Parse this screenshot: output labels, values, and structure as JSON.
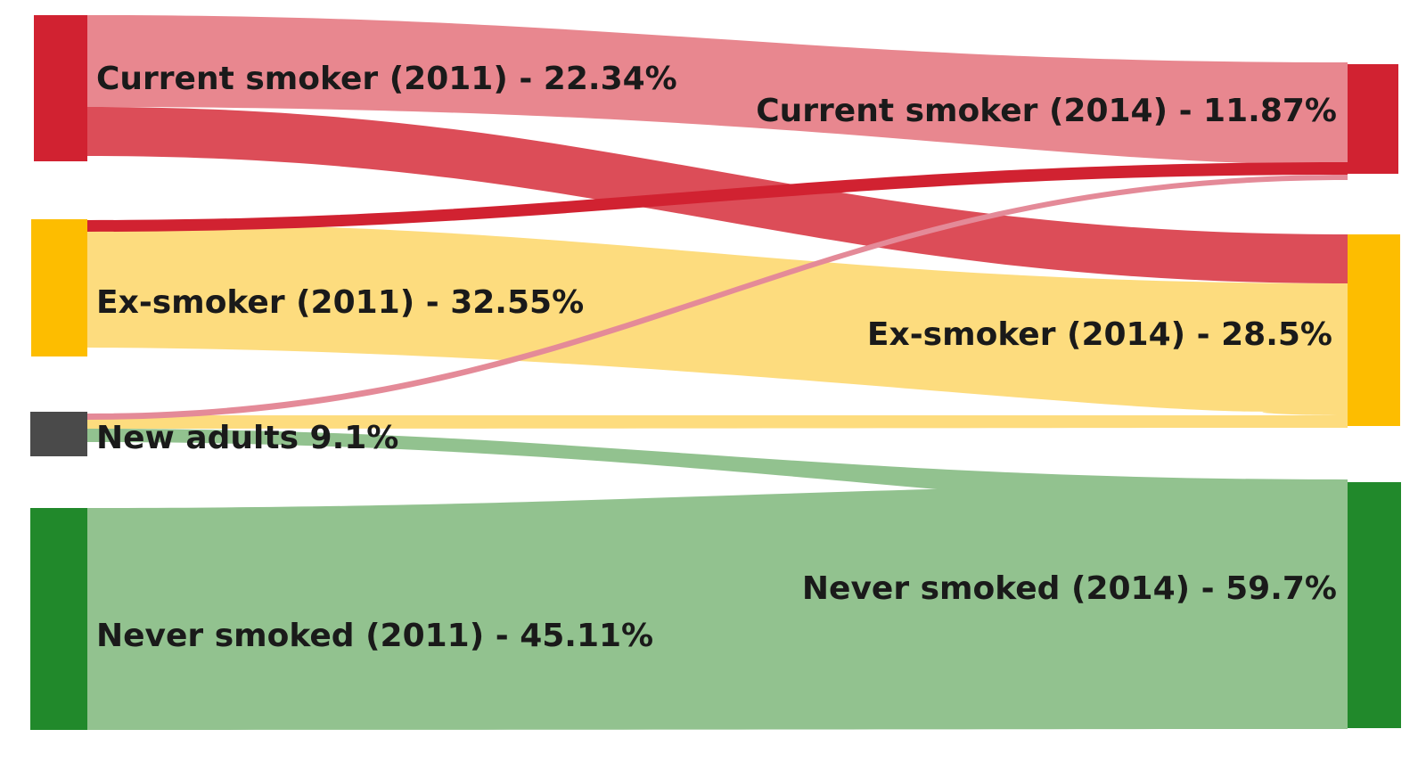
{
  "colors": {
    "current_node": "#d12231",
    "ex_node": "#fdbd00",
    "new_node": "#4a4a4a",
    "never_node": "#21892b",
    "flow_current_stay": "#e8878f",
    "flow_current_to_ex": "#dc4d58",
    "flow_ex_to_current": "#d12231",
    "flow_ex_stay": "#fddc7e",
    "flow_new_to_current": "#e48a98",
    "flow_new_to_ex": "#fddc7e",
    "flow_new_to_never": "#92c28f",
    "flow_never_stay": "#92c28f"
  },
  "nodes": {
    "current_2011": {
      "label": "Current smoker (2011) - 22.34%",
      "value": 22.34
    },
    "ex_2011": {
      "label": "Ex-smoker (2011) - 32.55%",
      "value": 32.55
    },
    "new_adults": {
      "label": "New adults 9.1%",
      "value": 9.1
    },
    "never_2011": {
      "label": "Never smoked (2011) - 45.11%",
      "value": 45.11
    },
    "current_2014": {
      "label": "Current smoker (2014) - 11.87%",
      "value": 11.87
    },
    "ex_2014": {
      "label": "Ex-smoker (2014) - 28.5%",
      "value": 28.5
    },
    "never_2014": {
      "label": "Never smoked (2014) - 59.7%",
      "value": 59.7
    }
  }
}
